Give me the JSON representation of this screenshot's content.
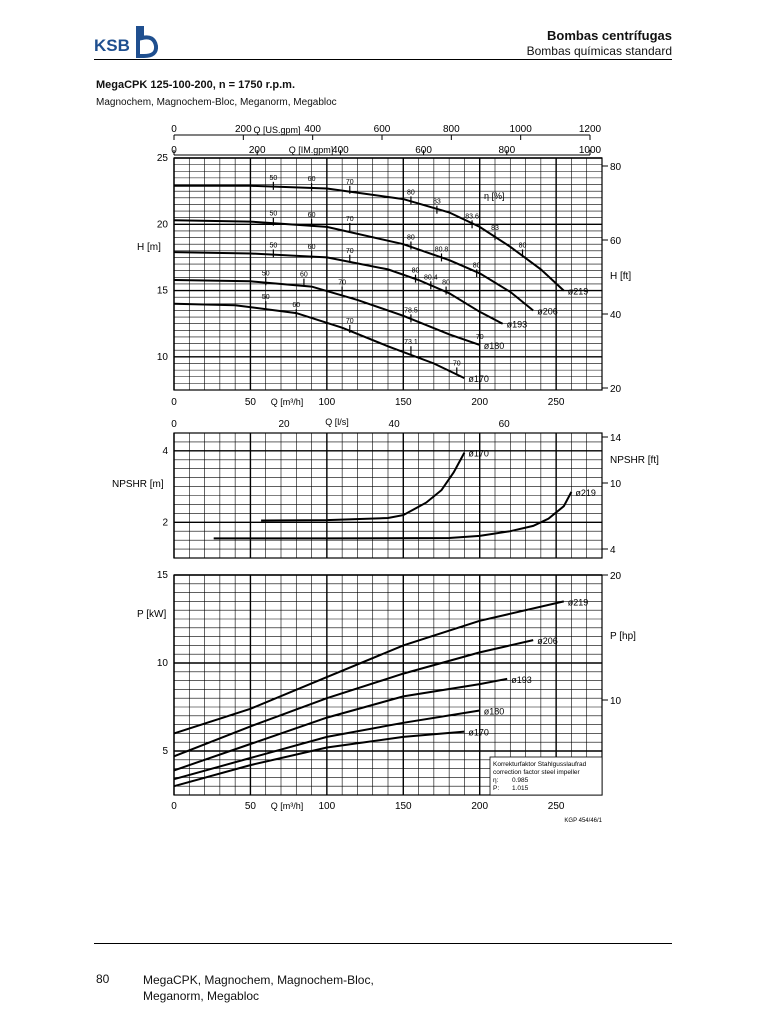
{
  "header": {
    "logo_text": "KSB",
    "title": "Bombas centrífugas",
    "subtitle": "Bombas químicas standard"
  },
  "chart_title": "MegaCPK 125-100-200, n = 1750 r.p.m.",
  "chart_subtitle": "Magnochem, Magnochem-Bloc, Meganorm, Megabloc",
  "footer": {
    "page": "80",
    "text_line1": "MegaCPK, Magnochem, Magnochem-Bloc,",
    "text_line2": "Meganorm, Megabloc"
  },
  "chart_data": [
    {
      "type": "line",
      "panel": "head",
      "xlabel": "Q [m³/h]",
      "ylabel": "H [m]",
      "ylabel_right": "H [ft]",
      "xlim": [
        0,
        280
      ],
      "ylim": [
        7.5,
        25
      ],
      "x_ticks": [
        0,
        50,
        100,
        150,
        200,
        250
      ],
      "y_ticks": [
        10,
        15,
        20,
        25
      ],
      "y_ticks_right": [
        "20",
        "40",
        "60",
        "80"
      ],
      "top_axis_usgpm": {
        "label": "Q [US.gpm]",
        "ticks": [
          "0",
          "200",
          "400",
          "600",
          "800",
          "1000",
          "1200"
        ]
      },
      "top_axis_imgpm": {
        "label": "Q [IM.gpm]",
        "ticks": [
          "0",
          "200",
          "400",
          "600",
          "800",
          "1000"
        ]
      },
      "grid": true,
      "series": [
        {
          "name": "ø219",
          "x": [
            0,
            50,
            100,
            150,
            180,
            200,
            220,
            240,
            255
          ],
          "y": [
            22.9,
            22.9,
            22.7,
            21.9,
            20.9,
            19.8,
            18.3,
            16.6,
            15.0
          ]
        },
        {
          "name": "ø206",
          "x": [
            0,
            50,
            100,
            150,
            180,
            200,
            220,
            235
          ],
          "y": [
            20.3,
            20.2,
            19.8,
            18.5,
            17.3,
            16.3,
            14.9,
            13.5
          ]
        },
        {
          "name": "ø193",
          "x": [
            0,
            50,
            100,
            140,
            160,
            180,
            200,
            215
          ],
          "y": [
            17.9,
            17.8,
            17.5,
            16.6,
            15.8,
            14.8,
            13.4,
            12.5
          ]
        },
        {
          "name": "ø180",
          "x": [
            0,
            50,
            90,
            120,
            150,
            180,
            200
          ],
          "y": [
            15.8,
            15.7,
            15.3,
            14.3,
            13.1,
            11.7,
            10.9
          ]
        },
        {
          "name": "ø170",
          "x": [
            0,
            40,
            80,
            110,
            140,
            170,
            190
          ],
          "y": [
            14.0,
            13.9,
            13.3,
            12.2,
            10.8,
            9.5,
            8.4
          ]
        }
      ],
      "efficiency_label": "η [%]",
      "efficiency_marks": [
        {
          "label": "50",
          "x": 65,
          "y": 22.9
        },
        {
          "label": "60",
          "x": 90,
          "y": 22.8
        },
        {
          "label": "70",
          "x": 115,
          "y": 22.6
        },
        {
          "label": "80",
          "x": 155,
          "y": 21.8
        },
        {
          "label": "83",
          "x": 172,
          "y": 21.1
        },
        {
          "label": "83.6",
          "x": 195,
          "y": 20.0
        },
        {
          "label": "83",
          "x": 210,
          "y": 19.1
        },
        {
          "label": "80",
          "x": 228,
          "y": 17.8
        },
        {
          "label": "50",
          "x": 65,
          "y": 20.2
        },
        {
          "label": "60",
          "x": 90,
          "y": 20.1
        },
        {
          "label": "70",
          "x": 115,
          "y": 19.8
        },
        {
          "label": "80",
          "x": 155,
          "y": 18.4
        },
        {
          "label": "80.8",
          "x": 175,
          "y": 17.5
        },
        {
          "label": "80",
          "x": 198,
          "y": 16.3
        },
        {
          "label": "50",
          "x": 65,
          "y": 17.8
        },
        {
          "label": "60",
          "x": 90,
          "y": 17.7
        },
        {
          "label": "70",
          "x": 115,
          "y": 17.4
        },
        {
          "label": "80",
          "x": 158,
          "y": 15.9
        },
        {
          "label": "80.4",
          "x": 168,
          "y": 15.4
        },
        {
          "label": "80",
          "x": 178,
          "y": 15.0
        },
        {
          "label": "50",
          "x": 60,
          "y": 15.7
        },
        {
          "label": "60",
          "x": 85,
          "y": 15.6
        },
        {
          "label": "70",
          "x": 110,
          "y": 15.0
        },
        {
          "label": "78.5",
          "x": 155,
          "y": 12.9
        },
        {
          "label": "70",
          "x": 200,
          "y": 10.9
        },
        {
          "label": "50",
          "x": 60,
          "y": 13.9
        },
        {
          "label": "60",
          "x": 80,
          "y": 13.3
        },
        {
          "label": "70",
          "x": 115,
          "y": 12.1
        },
        {
          "label": "73.1",
          "x": 155,
          "y": 10.5
        },
        {
          "label": "70",
          "x": 185,
          "y": 8.9
        }
      ]
    },
    {
      "type": "line",
      "panel": "npsh",
      "xlabel": "Q [l/s]",
      "ylabel": "NPSHR [m]",
      "ylabel_right": "NPSHR [ft]",
      "xlim": [
        0,
        280
      ],
      "ylim": [
        1,
        4.5
      ],
      "x_ticks_ls": [
        "0",
        "20",
        "40",
        "60"
      ],
      "y_ticks": [
        2,
        4
      ],
      "y_ticks_right": [
        "4",
        "10",
        "14"
      ],
      "grid": true,
      "series": [
        {
          "name": "ø170",
          "x": [
            57,
            100,
            140,
            150,
            165,
            175,
            183,
            190
          ],
          "y": [
            2.05,
            2.06,
            2.12,
            2.2,
            2.55,
            2.9,
            3.4,
            3.95
          ]
        },
        {
          "name": "ø219",
          "x": [
            26,
            100,
            180,
            200,
            220,
            235,
            245,
            255,
            260
          ],
          "y": [
            1.55,
            1.55,
            1.56,
            1.62,
            1.75,
            1.9,
            2.1,
            2.45,
            2.85
          ]
        }
      ]
    },
    {
      "type": "line",
      "panel": "power",
      "xlabel": "Q [m³/h]",
      "ylabel": "P [kW]",
      "ylabel_right": "P [hp]",
      "xlim": [
        0,
        280
      ],
      "ylim": [
        2.5,
        15
      ],
      "x_ticks": [
        0,
        50,
        100,
        150,
        200,
        250
      ],
      "y_ticks": [
        5,
        10,
        15
      ],
      "y_ticks_right": [
        "10",
        "20"
      ],
      "grid": true,
      "series": [
        {
          "name": "ø219",
          "x": [
            0,
            50,
            100,
            150,
            200,
            255
          ],
          "y": [
            6.0,
            7.4,
            9.2,
            11.0,
            12.4,
            13.5
          ]
        },
        {
          "name": "ø206",
          "x": [
            0,
            50,
            100,
            150,
            200,
            235
          ],
          "y": [
            4.7,
            6.4,
            8.0,
            9.4,
            10.6,
            11.3
          ]
        },
        {
          "name": "ø193",
          "x": [
            0,
            50,
            100,
            150,
            200,
            218
          ],
          "y": [
            3.9,
            5.4,
            6.9,
            8.1,
            8.8,
            9.1
          ]
        },
        {
          "name": "ø180",
          "x": [
            0,
            50,
            100,
            150,
            200
          ],
          "y": [
            3.4,
            4.6,
            5.8,
            6.6,
            7.3
          ]
        },
        {
          "name": "ø170",
          "x": [
            0,
            50,
            100,
            150,
            190
          ],
          "y": [
            3.0,
            4.2,
            5.2,
            5.8,
            6.1
          ]
        }
      ],
      "correction_box": {
        "line1": "Korrekturfaktor Stahlgusslaufrad",
        "line2": "correction factor steel impeller",
        "eta_label": "η:",
        "eta_value": "0.985",
        "p_label": "P:",
        "p_value": "1.015"
      },
      "reference": "KGP 454/46/1"
    }
  ]
}
